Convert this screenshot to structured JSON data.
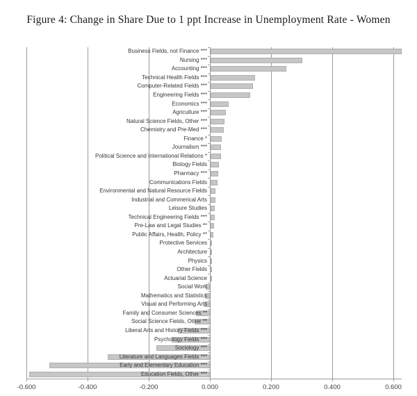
{
  "figure": {
    "title": "Figure 4: Change in Share Due to 1 ppt Increase in Unemployment Rate - Women"
  },
  "chart_data": {
    "type": "bar",
    "orientation": "horizontal",
    "title": "Figure 4: Change in Share Due to 1 ppt Increase in Unemployment Rate - Women",
    "xlabel": "",
    "ylabel": "",
    "xlim": [
      -0.65,
      0.628
    ],
    "x_ticks": [
      -0.6,
      -0.4,
      -0.2,
      0.0,
      0.2,
      0.4,
      0.6
    ],
    "x_tick_labels": [
      "-0.600",
      "-0.400",
      "-0.200",
      "0.000",
      "0.200",
      "0.400",
      "0.600"
    ],
    "grid": "vertical",
    "legend": "none",
    "bar_color": "#c6c6c6",
    "bar_border_color": "#b0b0b0",
    "gridline_color": "#9b9b9b",
    "text_color": "#404040",
    "categories": [
      "Business Fields, not Finance ***",
      "Nursing ***",
      "Accounting ***",
      "Technical Health Fields ***",
      "Computer-Related Fields ***",
      "Engineering Fields ***",
      "Economics ***",
      "Agriculture ***",
      "Natural Science Fields, Other ***",
      "Chemistry and Pre-Med ***",
      "Finance *",
      "Journalism ***",
      "Political Science and International Relations *",
      "Biology Fields",
      "Pharmacy ***",
      "Communications Fields",
      "Environmental and Natural Resource Fields",
      "Industrial and Commerical  Arts",
      "Leisure Studies",
      "Technical Engineering Fields ***",
      "Pre-Law and Legal Studies **",
      "Public Affairs, Health, Policy **",
      "Protective Services",
      "Architecture",
      "Physics",
      "Other Fields",
      "Actuarial Science",
      "Social Work",
      "Mathematics and Statistics",
      "Visual and Performing Arts",
      "Family and Consumer Sciences **",
      "Social Science Fields, Other **",
      "Liberal Arts and History Fields ***",
      "Psychology Fields ***",
      "Sociology ***",
      "Literature and Languages Fields ***",
      "Early and Elementary Education ***",
      "Education Fields, Other ***"
    ],
    "values": [
      0.625,
      0.3,
      0.247,
      0.145,
      0.138,
      0.13,
      0.059,
      0.051,
      0.046,
      0.043,
      0.036,
      0.034,
      0.033,
      0.028,
      0.026,
      0.023,
      0.017,
      0.015,
      0.014,
      0.013,
      0.012,
      0.01,
      0.005,
      0.004,
      0.003,
      0.003,
      0.002,
      -0.013,
      -0.015,
      -0.018,
      -0.046,
      -0.05,
      -0.105,
      -0.125,
      -0.175,
      -0.335,
      -0.525,
      -0.59
    ]
  }
}
